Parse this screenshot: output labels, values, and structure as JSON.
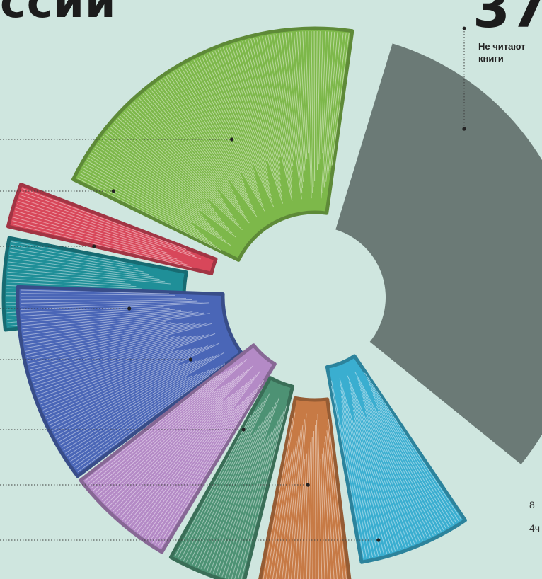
{
  "title_fragment": "ссии",
  "highlight": {
    "value": "37",
    "label_line1": "Не читают",
    "label_line2": "книги"
  },
  "edge_text": {
    "line1": "8",
    "line2": "4ч"
  },
  "colors": {
    "background": "#cfe6df",
    "gray": "#6b7a76",
    "green": "#7db84a",
    "red": "#d8475a",
    "teal": "#1f8f98",
    "blue": "#4a66b7",
    "purple": "#b48ac6",
    "dark_green": "#4d9274",
    "orange": "#c77a45",
    "cyan": "#3aaed0"
  },
  "chart_data": {
    "type": "pie",
    "style": "donut of stylized open books, partially cropped",
    "slices": [
      {
        "key": "not-reading",
        "label": "Не читают книги",
        "value": 37,
        "color": "#6b7a76"
      },
      {
        "key": "green",
        "label": "",
        "color": "#7db84a"
      },
      {
        "key": "red",
        "label": "",
        "color": "#d8475a"
      },
      {
        "key": "teal",
        "label": "",
        "color": "#1f8f98"
      },
      {
        "key": "blue",
        "label": "",
        "color": "#4a66b7"
      },
      {
        "key": "purple",
        "label": "",
        "color": "#b48ac6"
      },
      {
        "key": "dark-green",
        "label": "",
        "color": "#4d9274"
      },
      {
        "key": "orange",
        "label": "",
        "color": "#c77a45"
      },
      {
        "key": "cyan",
        "label": "",
        "color": "#3aaed0"
      }
    ]
  }
}
